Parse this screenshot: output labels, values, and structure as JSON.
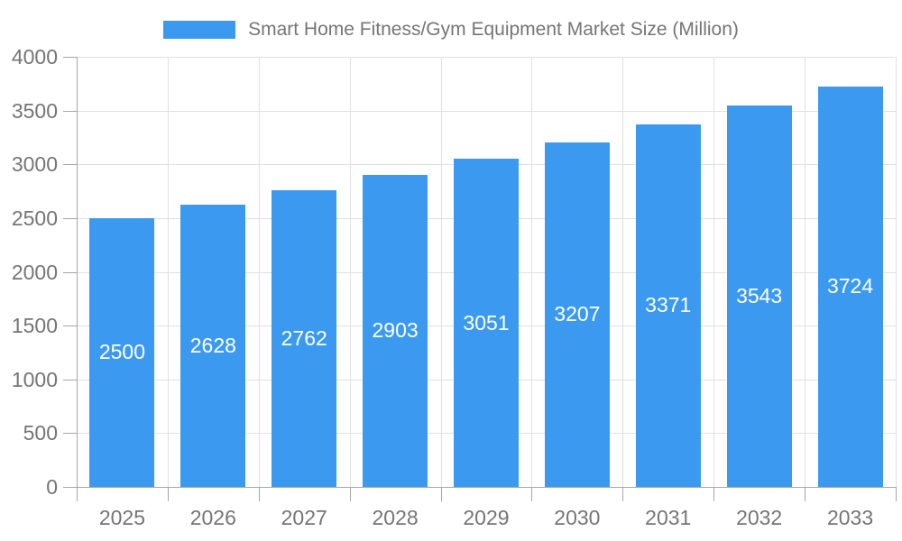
{
  "chart_data": {
    "type": "bar",
    "title": "Smart Home Fitness/Gym Equipment Market Size (Million)",
    "categories": [
      "2025",
      "2026",
      "2027",
      "2028",
      "2029",
      "2030",
      "2031",
      "2032",
      "2033"
    ],
    "values": [
      2500,
      2628,
      2762,
      2903,
      3051,
      3207,
      3371,
      3543,
      3724
    ],
    "series": [
      {
        "name": "Smart Home Fitness/Gym Equipment Market Size (Million)",
        "values": [
          2500,
          2628,
          2762,
          2903,
          3051,
          3207,
          3371,
          3543,
          3724
        ]
      }
    ],
    "xlabel": "",
    "ylabel": "",
    "ylim": [
      0,
      4000
    ],
    "ytick_step": 500,
    "ytick_labels": [
      "0",
      "500",
      "1000",
      "1500",
      "2000",
      "2500",
      "3000",
      "3500",
      "4000"
    ],
    "grid": true,
    "legend_position": "top-center",
    "value_labels": "inside-center",
    "colors": {
      "bar": "#3B9AF0",
      "value_label_text": "#FFFFFF",
      "axis_text": "#757575",
      "legend_text": "#757575",
      "axis_line": "#A6A6A6",
      "gridline": "#E0E0E0",
      "background": "#FFFFFF"
    }
  }
}
